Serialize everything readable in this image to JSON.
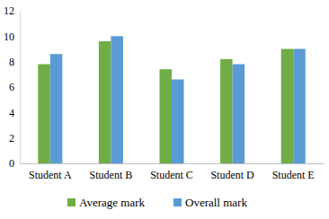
{
  "chart_data": {
    "type": "bar",
    "categories": [
      "Student A",
      "Student B",
      "Student C",
      "Student D",
      "Student E"
    ],
    "series": [
      {
        "name": "Average mark",
        "color": "#70ad47",
        "values": [
          7.8,
          9.6,
          7.4,
          8.2,
          9.0
        ]
      },
      {
        "name": "Overall mark",
        "color": "#5b9bd5",
        "values": [
          8.6,
          10.0,
          6.6,
          7.8,
          9.0
        ]
      }
    ],
    "ylim": [
      0,
      12
    ],
    "yticks": [
      0,
      2,
      4,
      6,
      8,
      10,
      12
    ],
    "grid": false,
    "legend": "bottom"
  }
}
